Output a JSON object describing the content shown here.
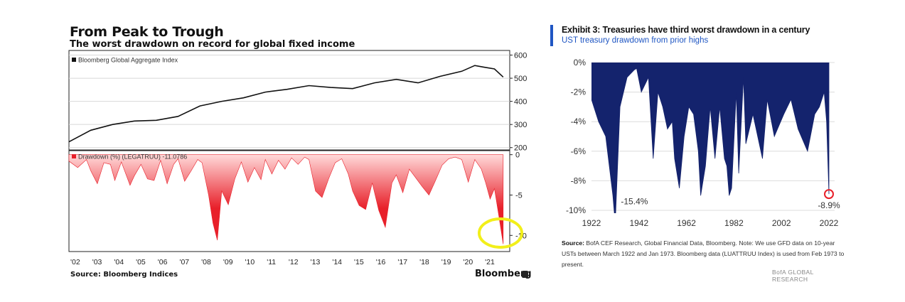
{
  "left": {
    "title": "From Peak to Trough",
    "subtitle": "The worst drawdown on record for global fixed income",
    "source": "Source: Bloomberg Indices",
    "brand": "Bloomberg"
  },
  "right": {
    "title": "Exhibit 3: Treasuries have third worst drawdown in a century",
    "subtitle": "UST treasury drawdown from prior highs",
    "note_source_label": "Source:",
    "note_text": "BofA CEF Research, Global Financial Data, Bloomberg. Note: We use GFD data on 10-year USTs between March 1922 and Jan 1973. Bloomberg data (LUATTRUU Index) is used from Feb 1973 to present.",
    "brand": "BofA GLOBAL RESEARCH"
  },
  "colors": {
    "index_line": "#111111",
    "drawdown_fill": "#e8202a",
    "highlight": "#f2ef1a",
    "ust_fill": "#14236d",
    "marker": "#e8202a",
    "accent": "#1f56c3"
  },
  "chart_data": [
    {
      "type": "line",
      "title": "Bloomberg Global Aggregate Index",
      "legend": "Bloomberg Global Aggregate Index",
      "x": [
        2002,
        2003,
        2004,
        2005,
        2006,
        2007,
        2008,
        2009,
        2010,
        2011,
        2012,
        2013,
        2014,
        2015,
        2016,
        2017,
        2018,
        2019,
        2020,
        2020.6,
        2021,
        2021.5,
        2021.9
      ],
      "values": [
        225,
        275,
        300,
        315,
        318,
        335,
        380,
        400,
        415,
        440,
        452,
        468,
        460,
        455,
        480,
        495,
        480,
        508,
        530,
        555,
        548,
        540,
        505
      ],
      "ylim": [
        190,
        620
      ],
      "yticks": [
        600,
        500,
        400,
        300,
        200
      ],
      "ytick_labels": [
        "600",
        "500",
        "400",
        "300",
        "200"
      ],
      "axis_side": "right"
    },
    {
      "type": "area",
      "title": "Drawdown (%) (LEGATRUU)",
      "legend": "Drawdown (%) (LEGATRUU) -11.0786",
      "x": [
        2002,
        2002.4,
        2002.8,
        2003,
        2003.3,
        2003.6,
        2003.9,
        2004.1,
        2004.4,
        2004.8,
        2005.0,
        2005.3,
        2005.6,
        2005.9,
        2006.2,
        2006.5,
        2006.8,
        2007.0,
        2007.3,
        2007.6,
        2007.9,
        2008.1,
        2008.4,
        2008.6,
        2008.8,
        2009.0,
        2009.3,
        2009.6,
        2009.9,
        2010.2,
        2010.5,
        2010.8,
        2011.0,
        2011.3,
        2011.6,
        2011.9,
        2012.2,
        2012.5,
        2012.8,
        2013.0,
        2013.3,
        2013.6,
        2013.9,
        2014.2,
        2014.5,
        2014.8,
        2015.0,
        2015.3,
        2015.6,
        2015.9,
        2016.2,
        2016.5,
        2016.8,
        2017.0,
        2017.3,
        2017.6,
        2017.9,
        2018.2,
        2018.5,
        2018.8,
        2019.1,
        2019.4,
        2019.7,
        2020.0,
        2020.3,
        2020.6,
        2020.9,
        2021.1,
        2021.3,
        2021.5,
        2021.7,
        2021.9
      ],
      "values": [
        -0.8,
        -1.6,
        -0.6,
        -2.0,
        -3.6,
        -1.0,
        -1.2,
        -3.2,
        -0.9,
        -3.8,
        -2.6,
        -1.2,
        -3.0,
        -3.2,
        -0.7,
        -3.6,
        -1.2,
        -0.5,
        -3.3,
        -2.0,
        -0.6,
        -1.0,
        -5.0,
        -8.5,
        -10.6,
        -4.5,
        -6.2,
        -3.0,
        -0.9,
        -3.4,
        -1.6,
        -3.1,
        -0.6,
        -2.4,
        -0.7,
        -1.8,
        -0.4,
        -1.2,
        -0.3,
        -0.6,
        -4.5,
        -5.3,
        -3.0,
        -1.0,
        -0.5,
        -2.4,
        -4.5,
        -6.3,
        -6.8,
        -3.5,
        -6.9,
        -9.0,
        -3.5,
        -2.5,
        -4.7,
        -1.8,
        -2.9,
        -4.0,
        -5.0,
        -3.2,
        -1.3,
        -0.5,
        -0.3,
        -0.6,
        -3.4,
        -0.6,
        -1.8,
        -3.5,
        -5.5,
        -4.2,
        -7.6,
        -11.08
      ],
      "ylim": [
        -12,
        0.5
      ],
      "yticks": [
        0,
        -5,
        -10
      ],
      "ytick_labels": [
        "0",
        "-5",
        "-10"
      ],
      "xtick_labels": [
        "'02",
        "'03",
        "'04",
        "'05",
        "'06",
        "'07",
        "'08",
        "'09",
        "'10",
        "'11",
        "'12",
        "'13",
        "'14",
        "'15",
        "'16",
        "'17",
        "'18",
        "'19",
        "'20",
        "'21"
      ],
      "annotations": [
        "highlighted latest trough"
      ]
    },
    {
      "type": "area",
      "title": "UST treasury drawdown from prior highs",
      "x": [
        1922,
        1925,
        1928,
        1931,
        1932,
        1934,
        1937,
        1940,
        1941,
        1943,
        1946,
        1948,
        1950,
        1952,
        1954,
        1956,
        1957,
        1959,
        1961,
        1963,
        1965,
        1967,
        1968,
        1970,
        1972,
        1974,
        1976,
        1978,
        1979,
        1980,
        1981,
        1983,
        1984,
        1986,
        1987,
        1990,
        1994,
        1996,
        1999,
        2003,
        2006,
        2009,
        2013,
        2016,
        2018,
        2020,
        2021,
        2022
      ],
      "values": [
        -2.5,
        -4.0,
        -5.0,
        -9.0,
        -15.4,
        -3.0,
        -1.0,
        -0.5,
        -0.4,
        -2.0,
        -1.0,
        -6.5,
        -2.0,
        -3.0,
        -4.5,
        -4.0,
        -6.5,
        -8.5,
        -5.0,
        -3.0,
        -3.5,
        -6.0,
        -9.0,
        -7.0,
        -3.0,
        -6.5,
        -3.0,
        -6.5,
        -7.0,
        -9.0,
        -8.5,
        -2.0,
        -7.5,
        -1.0,
        -5.5,
        -3.5,
        -6.5,
        -2.5,
        -5.0,
        -3.5,
        -2.5,
        -4.5,
        -6.0,
        -3.5,
        -3.0,
        -2.0,
        -4.0,
        -8.9
      ],
      "ylim": [
        -10,
        0
      ],
      "yticks": [
        0,
        -2,
        -4,
        -6,
        -8,
        -10
      ],
      "ytick_labels": [
        "0%",
        "-2%",
        "-4%",
        "-6%",
        "-8%",
        "-10%"
      ],
      "xtick_labels": [
        "1922",
        "1942",
        "1962",
        "1982",
        "2002",
        "2022"
      ],
      "annotations": [
        "-15.4%",
        "-8.9%"
      ]
    }
  ]
}
